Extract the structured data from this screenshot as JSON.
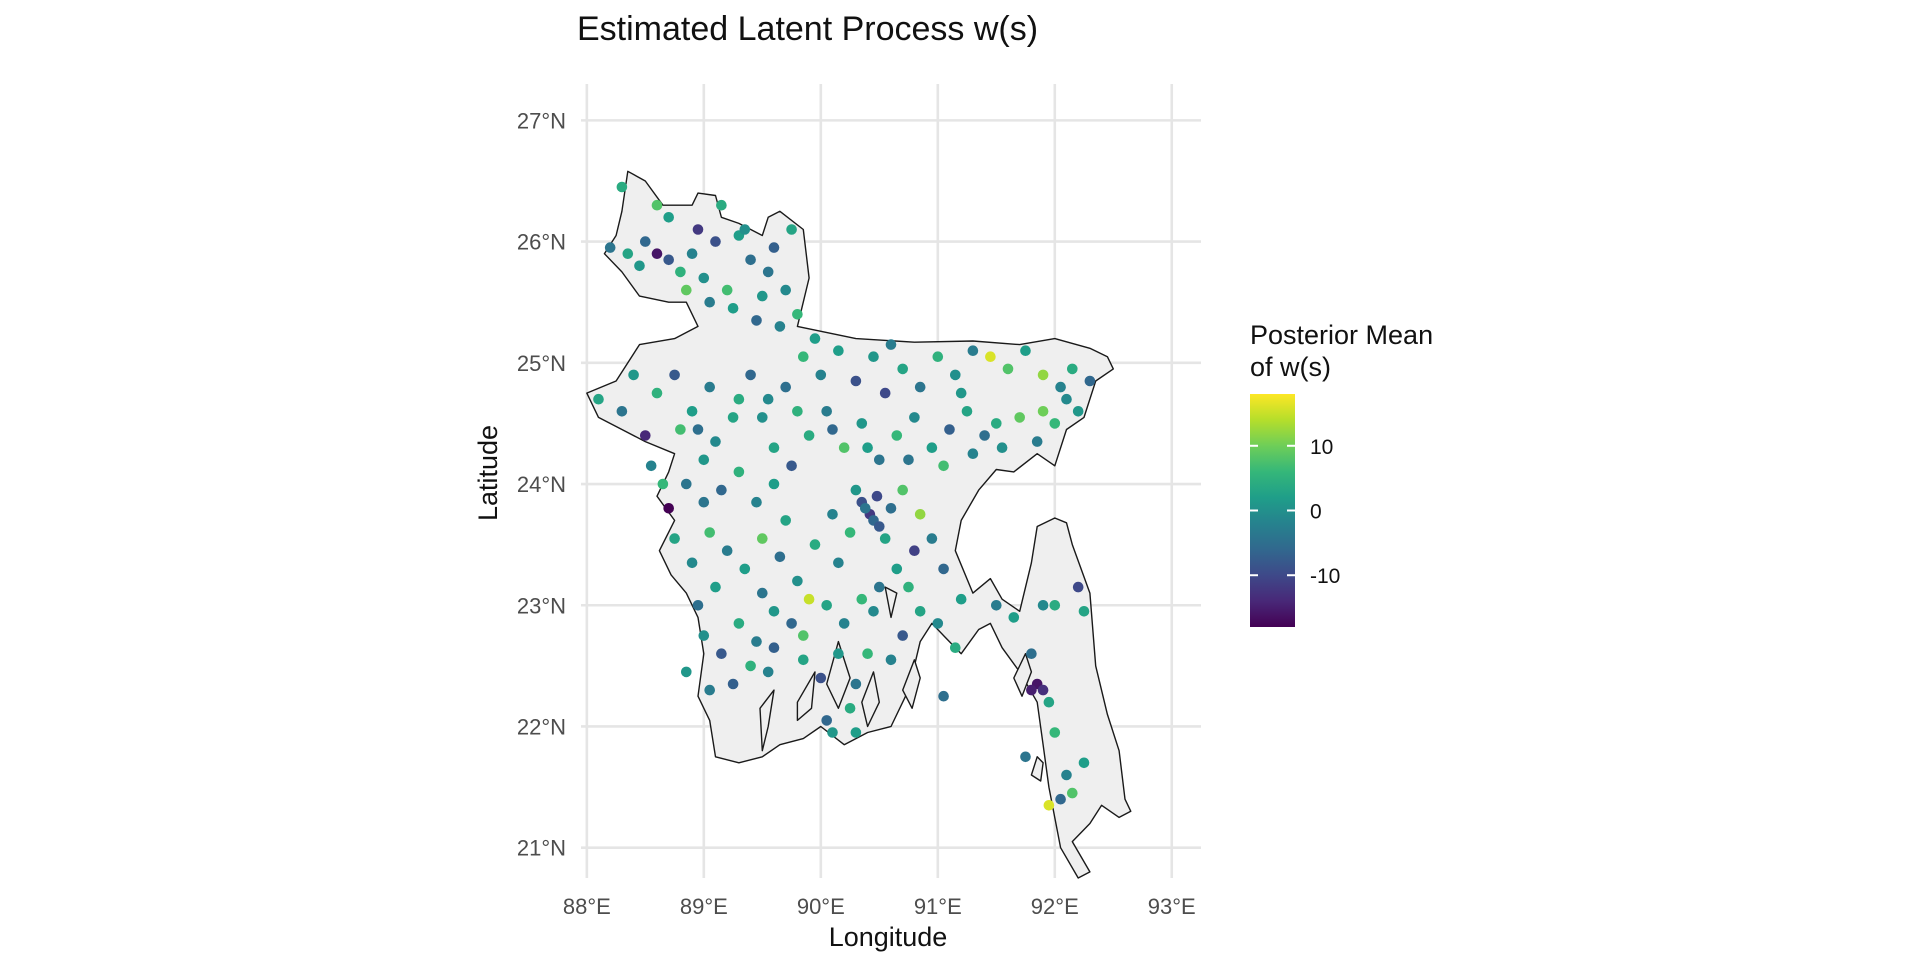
{
  "chart_data": {
    "type": "scatter",
    "title": "Estimated Latent Process w(s)",
    "xlabel": "Longitude",
    "ylabel": "Latitude",
    "xlim": [
      87.95,
      93.25
    ],
    "ylim": [
      20.75,
      27.3
    ],
    "x_ticks": [
      88,
      89,
      90,
      91,
      92,
      93
    ],
    "x_tick_labels": [
      "88°E",
      "89°E",
      "90°E",
      "91°E",
      "92°E",
      "93°E"
    ],
    "y_ticks": [
      21,
      22,
      23,
      24,
      25,
      26,
      27
    ],
    "y_tick_labels": [
      "21°N",
      "22°N",
      "23°N",
      "24°N",
      "25°N",
      "26°N",
      "27°N"
    ],
    "grid": true,
    "legend": {
      "title_lines": [
        "Posterior Mean",
        "of w(s)"
      ],
      "position": "right",
      "colormap": "viridis",
      "range": [
        -18,
        18
      ],
      "ticks": [
        10,
        0,
        -10
      ],
      "tick_labels": [
        "10",
        "0",
        "-10"
      ]
    },
    "colors": {
      "viridis": [
        "#440154",
        "#482878",
        "#3e4989",
        "#31688e",
        "#26828e",
        "#1f9e89",
        "#35b779",
        "#6ece58",
        "#b5de2b",
        "#fde725"
      ],
      "land_fill": "#efefef",
      "border": "#1a1a1a",
      "grid": "#e5e5e5"
    },
    "border_polygons": [
      [
        [
          88.35,
          26.58
        ],
        [
          88.5,
          26.5
        ],
        [
          88.65,
          26.3
        ],
        [
          88.9,
          26.3
        ],
        [
          88.95,
          26.4
        ],
        [
          89.1,
          26.38
        ],
        [
          89.15,
          26.2
        ],
        [
          89.3,
          26.15
        ],
        [
          89.5,
          26.05
        ],
        [
          89.55,
          26.2
        ],
        [
          89.65,
          26.25
        ],
        [
          89.85,
          26.1
        ],
        [
          89.9,
          25.7
        ],
        [
          89.8,
          25.3
        ],
        [
          90.3,
          25.2
        ],
        [
          90.8,
          25.17
        ],
        [
          91.3,
          25.18
        ],
        [
          91.7,
          25.15
        ],
        [
          92.0,
          25.2
        ],
        [
          92.3,
          25.12
        ],
        [
          92.45,
          25.05
        ],
        [
          92.5,
          24.95
        ],
        [
          92.35,
          24.85
        ],
        [
          92.25,
          24.55
        ],
        [
          92.1,
          24.45
        ],
        [
          92.0,
          24.15
        ],
        [
          91.85,
          24.25
        ],
        [
          91.65,
          24.1
        ],
        [
          91.5,
          24.12
        ],
        [
          91.35,
          23.95
        ],
        [
          91.2,
          23.7
        ],
        [
          91.15,
          23.45
        ],
        [
          91.3,
          23.1
        ],
        [
          91.45,
          23.22
        ],
        [
          91.55,
          23.05
        ],
        [
          91.7,
          22.95
        ],
        [
          91.8,
          23.35
        ],
        [
          91.85,
          23.65
        ],
        [
          92.0,
          23.72
        ],
        [
          92.1,
          23.68
        ],
        [
          92.15,
          23.5
        ],
        [
          92.3,
          23.1
        ],
        [
          92.35,
          22.5
        ],
        [
          92.45,
          22.1
        ],
        [
          92.55,
          21.8
        ],
        [
          92.6,
          21.4
        ],
        [
          92.65,
          21.3
        ],
        [
          92.55,
          21.25
        ],
        [
          92.4,
          21.35
        ],
        [
          92.3,
          21.2
        ],
        [
          92.15,
          21.05
        ],
        [
          92.3,
          20.8
        ],
        [
          92.2,
          20.75
        ],
        [
          92.05,
          21.0
        ],
        [
          91.95,
          21.5
        ],
        [
          91.9,
          21.85
        ],
        [
          91.85,
          22.2
        ],
        [
          91.7,
          22.45
        ],
        [
          91.55,
          22.65
        ],
        [
          91.45,
          22.85
        ],
        [
          91.35,
          22.8
        ],
        [
          91.2,
          22.6
        ],
        [
          91.05,
          22.75
        ],
        [
          90.95,
          22.85
        ],
        [
          90.85,
          22.7
        ],
        [
          90.8,
          22.5
        ],
        [
          90.75,
          22.3
        ],
        [
          90.6,
          22.0
        ],
        [
          90.4,
          21.95
        ],
        [
          90.2,
          21.85
        ],
        [
          90.0,
          22.0
        ],
        [
          89.85,
          21.9
        ],
        [
          89.65,
          21.85
        ],
        [
          89.5,
          21.75
        ],
        [
          89.3,
          21.7
        ],
        [
          89.1,
          21.75
        ],
        [
          89.05,
          22.05
        ],
        [
          88.95,
          22.25
        ],
        [
          89.0,
          22.6
        ],
        [
          88.95,
          22.9
        ],
        [
          88.85,
          23.1
        ],
        [
          88.72,
          23.25
        ],
        [
          88.62,
          23.45
        ],
        [
          88.75,
          23.7
        ],
        [
          88.6,
          23.9
        ],
        [
          88.7,
          24.1
        ],
        [
          88.75,
          24.25
        ],
        [
          88.5,
          24.35
        ],
        [
          88.3,
          24.45
        ],
        [
          88.1,
          24.55
        ],
        [
          88.0,
          24.75
        ],
        [
          88.25,
          24.85
        ],
        [
          88.45,
          25.15
        ],
        [
          88.75,
          25.2
        ],
        [
          88.95,
          25.3
        ],
        [
          88.85,
          25.5
        ],
        [
          88.7,
          25.5
        ],
        [
          88.45,
          25.55
        ],
        [
          88.3,
          25.75
        ],
        [
          88.15,
          25.9
        ],
        [
          88.25,
          26.05
        ],
        [
          88.3,
          26.25
        ],
        [
          88.35,
          26.58
        ]
      ],
      [
        [
          89.6,
          22.3
        ],
        [
          89.55,
          22.0
        ],
        [
          89.5,
          21.8
        ],
        [
          89.48,
          22.15
        ],
        [
          89.6,
          22.3
        ]
      ],
      [
        [
          89.95,
          22.45
        ],
        [
          89.8,
          22.2
        ],
        [
          89.8,
          22.05
        ],
        [
          89.92,
          22.15
        ],
        [
          89.95,
          22.45
        ]
      ],
      [
        [
          90.15,
          22.7
        ],
        [
          90.05,
          22.35
        ],
        [
          90.15,
          22.15
        ],
        [
          90.25,
          22.4
        ],
        [
          90.15,
          22.7
        ]
      ],
      [
        [
          90.45,
          22.45
        ],
        [
          90.35,
          22.2
        ],
        [
          90.4,
          22.0
        ],
        [
          90.5,
          22.2
        ],
        [
          90.45,
          22.45
        ]
      ],
      [
        [
          90.55,
          23.15
        ],
        [
          90.6,
          22.9
        ],
        [
          90.65,
          23.1
        ],
        [
          90.55,
          23.15
        ]
      ],
      [
        [
          90.8,
          22.55
        ],
        [
          90.7,
          22.3
        ],
        [
          90.78,
          22.15
        ],
        [
          90.85,
          22.4
        ],
        [
          90.8,
          22.55
        ]
      ],
      [
        [
          91.75,
          22.6
        ],
        [
          91.65,
          22.4
        ],
        [
          91.72,
          22.25
        ],
        [
          91.8,
          22.45
        ],
        [
          91.75,
          22.6
        ]
      ],
      [
        [
          91.85,
          21.75
        ],
        [
          91.8,
          21.6
        ],
        [
          91.88,
          21.55
        ],
        [
          91.9,
          21.7
        ],
        [
          91.85,
          21.75
        ]
      ]
    ],
    "points": [
      [
        88.3,
        26.45,
        4
      ],
      [
        88.6,
        26.3,
        8
      ],
      [
        88.7,
        26.2,
        2
      ],
      [
        88.5,
        26.0,
        -6
      ],
      [
        88.6,
        25.9,
        -16
      ],
      [
        88.35,
        25.9,
        3
      ],
      [
        88.2,
        25.95,
        -4
      ],
      [
        88.45,
        25.8,
        1
      ],
      [
        88.7,
        25.85,
        -8
      ],
      [
        88.8,
        25.75,
        5
      ],
      [
        88.9,
        25.9,
        -2
      ],
      [
        89.0,
        25.7,
        0
      ],
      [
        89.1,
        26.0,
        -9
      ],
      [
        89.3,
        26.05,
        2
      ],
      [
        89.4,
        25.85,
        -5
      ],
      [
        89.2,
        25.6,
        7
      ],
      [
        89.05,
        25.5,
        -3
      ],
      [
        89.5,
        25.55,
        1
      ],
      [
        89.6,
        25.95,
        -7
      ],
      [
        89.75,
        26.1,
        3
      ],
      [
        89.7,
        25.6,
        -1
      ],
      [
        89.8,
        25.4,
        6
      ],
      [
        88.95,
        26.1,
        -12
      ],
      [
        89.15,
        26.3,
        4
      ],
      [
        89.35,
        26.1,
        0
      ],
      [
        89.55,
        25.75,
        -4
      ],
      [
        89.25,
        25.45,
        2
      ],
      [
        89.45,
        25.35,
        -6
      ],
      [
        88.85,
        25.6,
        9
      ],
      [
        89.65,
        25.3,
        -2
      ],
      [
        88.1,
        24.7,
        3
      ],
      [
        88.3,
        24.6,
        -4
      ],
      [
        88.5,
        24.4,
        -14
      ],
      [
        88.6,
        24.75,
        5
      ],
      [
        88.4,
        24.9,
        1
      ],
      [
        88.75,
        24.9,
        -8
      ],
      [
        88.9,
        24.6,
        2
      ],
      [
        89.05,
        24.8,
        -3
      ],
      [
        88.8,
        24.45,
        7
      ],
      [
        89.1,
        24.35,
        -1
      ],
      [
        89.3,
        24.7,
        4
      ],
      [
        89.4,
        24.9,
        -6
      ],
      [
        89.5,
        24.55,
        0
      ],
      [
        89.6,
        24.3,
        3
      ],
      [
        89.7,
        24.8,
        -5
      ],
      [
        89.85,
        25.05,
        6
      ],
      [
        90.0,
        24.9,
        -2
      ],
      [
        90.15,
        25.1,
        2
      ],
      [
        90.3,
        24.85,
        -9
      ],
      [
        90.45,
        25.05,
        1
      ],
      [
        90.55,
        24.75,
        -10
      ],
      [
        90.7,
        24.95,
        3
      ],
      [
        90.85,
        24.8,
        -4
      ],
      [
        91.0,
        25.05,
        5
      ],
      [
        91.15,
        24.9,
        0
      ],
      [
        91.3,
        25.1,
        -3
      ],
      [
        91.45,
        25.05,
        16
      ],
      [
        91.6,
        24.95,
        8
      ],
      [
        91.75,
        25.1,
        2
      ],
      [
        91.9,
        24.9,
        12
      ],
      [
        92.05,
        24.8,
        -2
      ],
      [
        92.15,
        24.95,
        4
      ],
      [
        92.3,
        24.85,
        -6
      ],
      [
        92.2,
        24.6,
        1
      ],
      [
        92.0,
        24.5,
        6
      ],
      [
        91.85,
        24.35,
        -3
      ],
      [
        91.7,
        24.55,
        9
      ],
      [
        91.55,
        24.3,
        0
      ],
      [
        91.4,
        24.4,
        -5
      ],
      [
        91.25,
        24.6,
        3
      ],
      [
        91.1,
        24.45,
        -7
      ],
      [
        90.95,
        24.3,
        2
      ],
      [
        90.8,
        24.55,
        -1
      ],
      [
        90.65,
        24.4,
        6
      ],
      [
        90.5,
        24.2,
        -4
      ],
      [
        90.35,
        24.5,
        1
      ],
      [
        90.2,
        24.3,
        8
      ],
      [
        90.05,
        24.6,
        -3
      ],
      [
        89.9,
        24.4,
        4
      ],
      [
        89.75,
        24.15,
        -8
      ],
      [
        89.6,
        24.0,
        2
      ],
      [
        89.45,
        23.85,
        -2
      ],
      [
        89.3,
        24.1,
        5
      ],
      [
        89.15,
        23.95,
        -6
      ],
      [
        89.0,
        24.2,
        1
      ],
      [
        88.85,
        24.0,
        -4
      ],
      [
        88.7,
        23.8,
        -18
      ],
      [
        88.75,
        23.55,
        3
      ],
      [
        88.9,
        23.35,
        -1
      ],
      [
        89.05,
        23.6,
        7
      ],
      [
        89.2,
        23.45,
        -3
      ],
      [
        89.35,
        23.3,
        2
      ],
      [
        89.5,
        23.55,
        9
      ],
      [
        89.65,
        23.4,
        -5
      ],
      [
        89.8,
        23.2,
        0
      ],
      [
        89.95,
        23.5,
        4
      ],
      [
        90.1,
        23.75,
        -2
      ],
      [
        90.25,
        23.6,
        6
      ],
      [
        90.35,
        23.85,
        -9
      ],
      [
        90.42,
        23.75,
        -12
      ],
      [
        90.45,
        23.7,
        -6
      ],
      [
        90.5,
        23.65,
        -8
      ],
      [
        90.38,
        23.8,
        -4
      ],
      [
        90.48,
        23.9,
        -10
      ],
      [
        90.55,
        23.55,
        3
      ],
      [
        90.6,
        23.8,
        -5
      ],
      [
        90.3,
        23.95,
        1
      ],
      [
        90.7,
        23.95,
        8
      ],
      [
        90.85,
        23.75,
        12
      ],
      [
        90.95,
        23.55,
        -3
      ],
      [
        90.8,
        23.45,
        -11
      ],
      [
        90.65,
        23.3,
        2
      ],
      [
        90.5,
        23.15,
        -4
      ],
      [
        90.35,
        23.05,
        6
      ],
      [
        90.2,
        22.85,
        -2
      ],
      [
        90.05,
        23.0,
        3
      ],
      [
        89.9,
        23.05,
        15
      ],
      [
        89.75,
        22.85,
        -6
      ],
      [
        89.6,
        22.95,
        1
      ],
      [
        89.45,
        22.7,
        -3
      ],
      [
        89.3,
        22.85,
        4
      ],
      [
        89.15,
        22.6,
        -8
      ],
      [
        89.0,
        22.75,
        0
      ],
      [
        88.95,
        23.0,
        -5
      ],
      [
        89.1,
        23.15,
        2
      ],
      [
        89.25,
        22.35,
        -7
      ],
      [
        89.4,
        22.5,
        5
      ],
      [
        89.55,
        22.45,
        -2
      ],
      [
        89.85,
        22.55,
        3
      ],
      [
        90.0,
        22.4,
        -9
      ],
      [
        90.15,
        22.6,
        1
      ],
      [
        90.3,
        22.35,
        -4
      ],
      [
        90.4,
        22.6,
        6
      ],
      [
        90.6,
        22.55,
        -2
      ],
      [
        90.7,
        22.75,
        -8
      ],
      [
        90.85,
        22.95,
        3
      ],
      [
        91.0,
        22.85,
        -1
      ],
      [
        91.15,
        22.65,
        4
      ],
      [
        91.05,
        22.25,
        -5
      ],
      [
        90.3,
        21.95,
        2
      ],
      [
        90.05,
        22.05,
        -6
      ],
      [
        90.1,
        21.95,
        1
      ],
      [
        91.5,
        23.0,
        -3
      ],
      [
        91.65,
        22.9,
        2
      ],
      [
        91.8,
        22.6,
        -5
      ],
      [
        91.85,
        22.35,
        -16
      ],
      [
        91.9,
        22.3,
        -13
      ],
      [
        91.8,
        22.3,
        -15
      ],
      [
        91.95,
        22.2,
        3
      ],
      [
        92.0,
        21.95,
        6
      ],
      [
        92.1,
        21.6,
        -2
      ],
      [
        92.15,
        21.45,
        8
      ],
      [
        92.05,
        21.4,
        -6
      ],
      [
        91.95,
        21.35,
        16
      ],
      [
        92.25,
        21.7,
        2
      ],
      [
        92.2,
        23.15,
        -10
      ],
      [
        92.0,
        23.0,
        4
      ],
      [
        91.9,
        23.0,
        -1
      ],
      [
        92.25,
        22.95,
        3
      ],
      [
        91.75,
        21.75,
        -4
      ],
      [
        88.55,
        24.15,
        -2
      ],
      [
        88.65,
        24.0,
        6
      ],
      [
        88.95,
        24.45,
        -5
      ],
      [
        89.25,
        24.55,
        3
      ],
      [
        89.55,
        24.7,
        -1
      ],
      [
        89.8,
        24.6,
        5
      ],
      [
        90.1,
        24.45,
        -6
      ],
      [
        90.4,
        24.3,
        2
      ],
      [
        90.75,
        24.2,
        -4
      ],
      [
        91.05,
        24.15,
        7
      ],
      [
        91.3,
        24.25,
        -2
      ],
      [
        91.5,
        24.5,
        4
      ],
      [
        91.9,
        24.6,
        10
      ],
      [
        92.1,
        24.7,
        -1
      ],
      [
        89.95,
        25.2,
        2
      ],
      [
        90.6,
        25.15,
        -3
      ],
      [
        91.2,
        24.75,
        1
      ],
      [
        89.0,
        23.85,
        -4
      ],
      [
        89.7,
        23.7,
        3
      ],
      [
        90.15,
        23.35,
        -2
      ],
      [
        90.75,
        23.15,
        5
      ],
      [
        91.05,
        23.3,
        -6
      ],
      [
        91.2,
        23.05,
        2
      ],
      [
        90.45,
        22.95,
        -1
      ],
      [
        89.85,
        22.75,
        8
      ],
      [
        89.5,
        23.1,
        -4
      ],
      [
        88.85,
        22.45,
        1
      ],
      [
        89.05,
        22.3,
        -3
      ],
      [
        90.25,
        22.15,
        4
      ],
      [
        89.6,
        22.65,
        -7
      ]
    ]
  }
}
